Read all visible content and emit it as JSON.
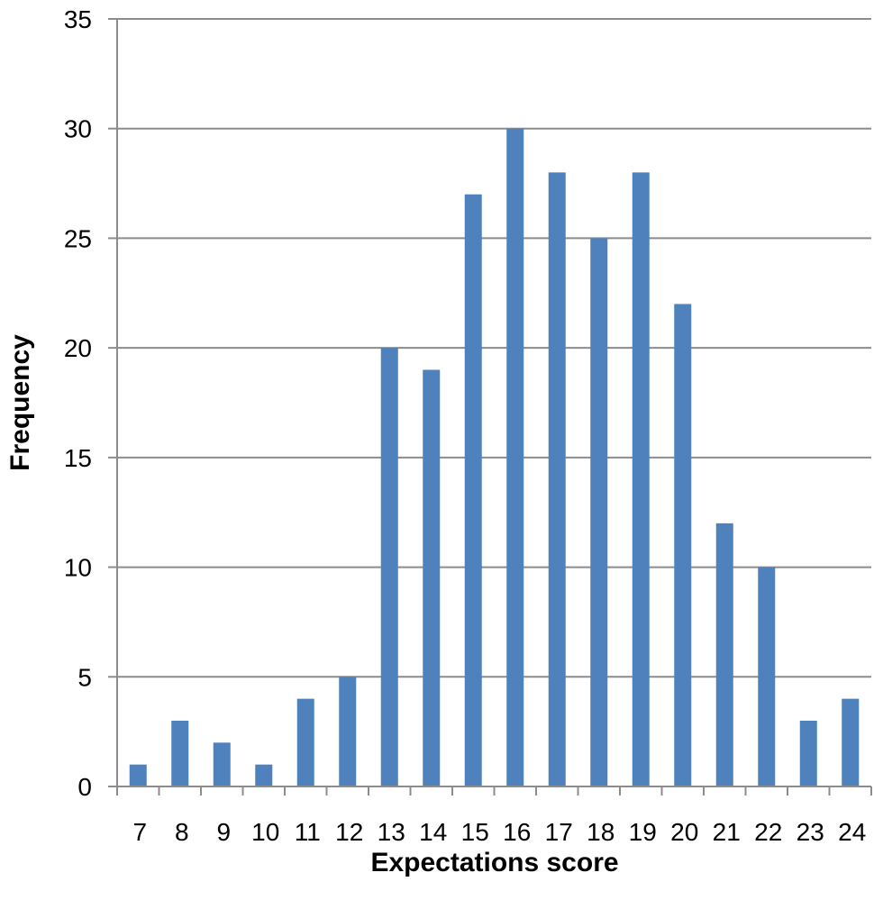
{
  "chart_data": {
    "type": "bar",
    "title": "",
    "xlabel": "Expectations score",
    "ylabel": "Frequency",
    "categories": [
      "7",
      "8",
      "9",
      "10",
      "11",
      "12",
      "13",
      "14",
      "15",
      "16",
      "17",
      "18",
      "19",
      "20",
      "21",
      "22",
      "23",
      "24"
    ],
    "values": [
      1,
      3,
      2,
      1,
      4,
      5,
      20,
      19,
      27,
      30,
      28,
      25,
      28,
      22,
      12,
      10,
      3,
      4
    ],
    "ylim": [
      0,
      35
    ],
    "yticks": [
      0,
      5,
      10,
      15,
      20,
      25,
      30,
      35
    ],
    "grid": true,
    "legend": "none",
    "bar_color": "#4F81BD",
    "grid_color": "#8C8C8C",
    "axis_color": "#8C8C8C"
  }
}
